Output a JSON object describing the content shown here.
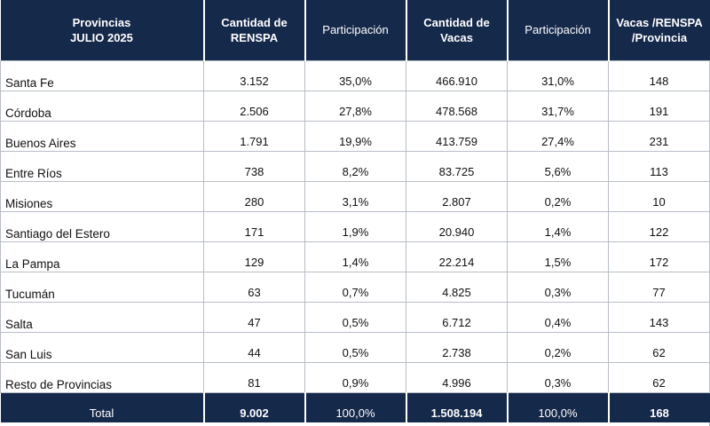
{
  "header": {
    "col0": [
      "Provincias",
      "JULIO 2025"
    ],
    "col1": [
      "Cantidad de",
      "RENSPA"
    ],
    "col2": [
      "Participación"
    ],
    "col3": [
      "Cantidad de",
      "Vacas"
    ],
    "col4": [
      "Participación"
    ],
    "col5": [
      "Vacas /RENSPA",
      "/Provincia"
    ]
  },
  "rows": [
    {
      "provincia": "Santa Fe",
      "renspa": "3.152",
      "part_renspa": "35,0%",
      "vacas": "466.910",
      "part_vacas": "31,0%",
      "ratio": "148"
    },
    {
      "provincia": "Córdoba",
      "renspa": "2.506",
      "part_renspa": "27,8%",
      "vacas": "478.568",
      "part_vacas": "31,7%",
      "ratio": "191"
    },
    {
      "provincia": "Buenos Aires",
      "renspa": "1.791",
      "part_renspa": "19,9%",
      "vacas": "413.759",
      "part_vacas": "27,4%",
      "ratio": "231"
    },
    {
      "provincia": "Entre Ríos",
      "renspa": "738",
      "part_renspa": "8,2%",
      "vacas": "83.725",
      "part_vacas": "5,6%",
      "ratio": "113"
    },
    {
      "provincia": "Misiones",
      "renspa": "280",
      "part_renspa": "3,1%",
      "vacas": "2.807",
      "part_vacas": "0,2%",
      "ratio": "10"
    },
    {
      "provincia": "Santiago del Estero",
      "renspa": "171",
      "part_renspa": "1,9%",
      "vacas": "20.940",
      "part_vacas": "1,4%",
      "ratio": "122"
    },
    {
      "provincia": "La Pampa",
      "renspa": "129",
      "part_renspa": "1,4%",
      "vacas": "22.214",
      "part_vacas": "1,5%",
      "ratio": "172"
    },
    {
      "provincia": "Tucumán",
      "renspa": "63",
      "part_renspa": "0,7%",
      "vacas": "4.825",
      "part_vacas": "0,3%",
      "ratio": "77"
    },
    {
      "provincia": "Salta",
      "renspa": "47",
      "part_renspa": "0,5%",
      "vacas": "6.712",
      "part_vacas": "0,4%",
      "ratio": "143"
    },
    {
      "provincia": "San Luis",
      "renspa": "44",
      "part_renspa": "0,5%",
      "vacas": "2.738",
      "part_vacas": "0,2%",
      "ratio": "62"
    },
    {
      "provincia": "Resto de Provincias",
      "renspa": "81",
      "part_renspa": "0,9%",
      "vacas": "4.996",
      "part_vacas": "0,3%",
      "ratio": "62"
    }
  ],
  "total": {
    "label": "Total",
    "renspa": "9.002",
    "part_renspa": "100,0%",
    "vacas": "1.508.194",
    "part_vacas": "100,0%",
    "ratio": "168"
  }
}
